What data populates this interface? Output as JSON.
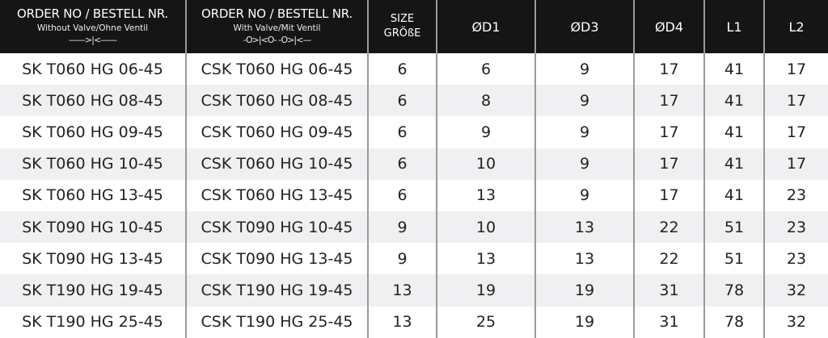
{
  "headers": [
    {
      "main": "ORDER NO / BESTELL NR.",
      "sub": "Without Valve/Ohne Ventil",
      "symbol": "——>|<——"
    },
    {
      "main": "ORDER NO / BESTELL NR.",
      "sub": "With Valve/Mit Ventil",
      "symbol": "-O>|<O-   -O>|<—"
    },
    {
      "main": "SIZE",
      "sub": "GRÖßE"
    },
    {
      "main": "ØD1"
    },
    {
      "main": "ØD3"
    },
    {
      "main": "ØD4"
    },
    {
      "main": "L1"
    },
    {
      "main": "L2"
    }
  ],
  "rows": [
    [
      "SK T060 HG 06-45",
      "CSK T060 HG 06-45",
      "6",
      "6",
      "9",
      "17",
      "41",
      "17"
    ],
    [
      "SK T060 HG 08-45",
      "CSK T060 HG 08-45",
      "6",
      "8",
      "9",
      "17",
      "41",
      "17"
    ],
    [
      "SK T060 HG 09-45",
      "CSK T060 HG 09-45",
      "6",
      "9",
      "9",
      "17",
      "41",
      "17"
    ],
    [
      "SK T060 HG 10-45",
      "CSK T060 HG 10-45",
      "6",
      "10",
      "9",
      "17",
      "41",
      "17"
    ],
    [
      "SK T060 HG 13-45",
      "CSK T060 HG 13-45",
      "6",
      "13",
      "9",
      "17",
      "41",
      "23"
    ],
    [
      "SK T090 HG 10-45",
      "CSK T090 HG 10-45",
      "9",
      "10",
      "13",
      "22",
      "51",
      "23"
    ],
    [
      "SK T090 HG 13-45",
      "CSK T090 HG 13-45",
      "9",
      "13",
      "13",
      "22",
      "51",
      "23"
    ],
    [
      "SK T190 HG 19-45",
      "CSK T190 HG 19-45",
      "13",
      "19",
      "19",
      "31",
      "78",
      "32"
    ],
    [
      "SK T190 HG 25-45",
      "CSK T190 HG 25-45",
      "13",
      "25",
      "19",
      "31",
      "78",
      "32"
    ]
  ],
  "colors": {
    "header_bg": "#151515",
    "alt_row": "#f0f0f2",
    "divider": "#9a9a9a"
  }
}
